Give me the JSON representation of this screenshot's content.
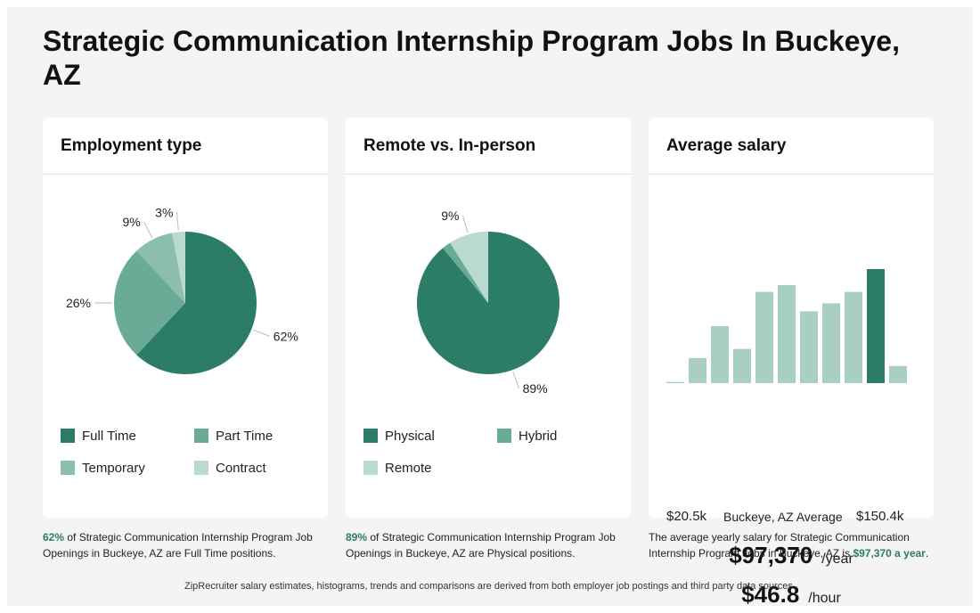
{
  "title": "Strategic Communication Internship Program Jobs In Buckeye, AZ",
  "colors": {
    "dark_green": "#2c7d67",
    "mid_green": "#6aab98",
    "light_green": "#8cbeaf",
    "pale_green": "#bad9cf",
    "highlight": "#2c7d65"
  },
  "employment": {
    "heading": "Employment type",
    "legend": [
      "Full Time",
      "Part Time",
      "Temporary",
      "Contract"
    ],
    "labels": [
      "62%",
      "26%",
      "9%",
      "3%"
    ],
    "footnote_pct": "62%",
    "footnote_text": " of Strategic Communication Internship Program Job Openings in Buckeye, AZ are Full Time positions."
  },
  "remote": {
    "heading": "Remote vs. In-person",
    "legend": [
      "Physical",
      "Hybrid",
      "Remote"
    ],
    "labels": [
      "89%",
      "9%"
    ],
    "footnote_pct": "89%",
    "footnote_text": " of Strategic Communication Internship Program Job Openings in Buckeye, AZ are Physical positions."
  },
  "salary": {
    "heading": "Average salary",
    "min_label": "$20.5k",
    "mid_label": "Buckeye, AZ Average",
    "max_label": "$150.4k",
    "yearly": "$97,370",
    "yearly_unit": "/year",
    "hourly": "$46.8",
    "hourly_unit": "/hour",
    "footnote_text": "The average yearly salary for Strategic Communication Internship Program Jobs in Buckeye, AZ is ",
    "footnote_value": "$97,370 a year",
    "footnote_end": "."
  },
  "source_note": "ZipRecruiter salary estimates, histograms, trends and comparisons are derived from both employer job postings and third party data sources.",
  "chart_data": [
    {
      "type": "pie",
      "title": "Employment type",
      "categories": [
        "Full Time",
        "Part Time",
        "Temporary",
        "Contract"
      ],
      "values": [
        62,
        26,
        9,
        3
      ],
      "colors": [
        "#2c7d67",
        "#6aab98",
        "#8cbeaf",
        "#bad9cf"
      ],
      "legend_placement": "bottom"
    },
    {
      "type": "pie",
      "title": "Remote vs. In-person",
      "categories": [
        "Physical",
        "Hybrid",
        "Remote"
      ],
      "values": [
        89,
        2,
        9
      ],
      "colors": [
        "#2c7d67",
        "#6aab98",
        "#bad9cf"
      ],
      "legend_placement": "bottom"
    },
    {
      "type": "bar",
      "title": "Average salary",
      "x_range_labels": [
        "$20.5k",
        "$150.4k"
      ],
      "values": [
        1,
        22,
        50,
        30,
        80,
        86,
        63,
        70,
        80,
        100,
        15
      ],
      "highlight_index": 9,
      "bar_color": "#a8cfc2",
      "highlight_color": "#2c7d67"
    }
  ]
}
